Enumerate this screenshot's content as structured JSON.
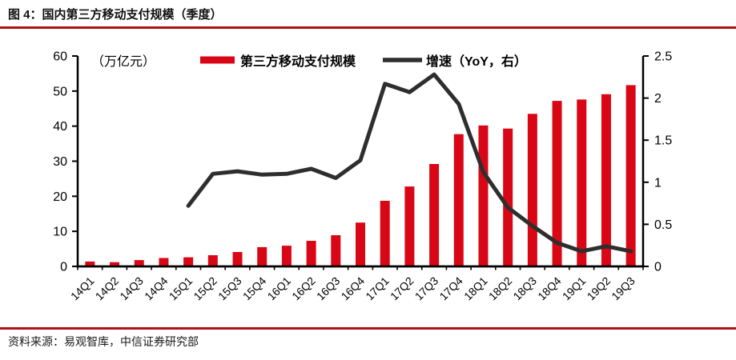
{
  "header": {
    "title": "图 4：国内第三方移动支付规模（季度）"
  },
  "footer": {
    "source": "资料来源：易观智库，中信证券研究部"
  },
  "colors": {
    "bar": "#d90715",
    "line": "#2e2e2e",
    "axis": "#000000",
    "title_rule": "#b01116",
    "footer_rule": "#b01116"
  },
  "chart_data": {
    "type": "bar",
    "title": "国内第三方移动支付规模（季度）",
    "unit_label": "（万亿元）",
    "legend_position": "top",
    "grid": false,
    "categories": [
      "14Q1",
      "14Q2",
      "14Q3",
      "14Q4",
      "15Q1",
      "15Q2",
      "15Q3",
      "15Q4",
      "16Q1",
      "16Q2",
      "16Q3",
      "16Q4",
      "17Q1",
      "17Q2",
      "17Q3",
      "17Q4",
      "18Q1",
      "18Q2",
      "18Q3",
      "18Q4",
      "19Q1",
      "19Q2",
      "19Q3"
    ],
    "series": [
      {
        "name": "第三方移动支付规模",
        "type": "bar",
        "axis": "left",
        "values": [
          1.4,
          1.2,
          1.8,
          2.4,
          2.6,
          3.2,
          4.1,
          5.5,
          5.9,
          7.3,
          8.9,
          12.5,
          18.7,
          22.8,
          29.2,
          37.7,
          40.2,
          39.3,
          43.5,
          47.2,
          47.6,
          49.1,
          51.7
        ]
      },
      {
        "name": "增速（YoY，右）",
        "type": "line",
        "axis": "right",
        "values": [
          null,
          null,
          null,
          null,
          0.72,
          1.1,
          1.13,
          1.09,
          1.1,
          1.16,
          1.05,
          1.26,
          2.17,
          2.07,
          2.28,
          1.93,
          1.12,
          0.7,
          0.48,
          0.28,
          0.18,
          0.24,
          0.18
        ]
      }
    ],
    "left_axis": {
      "min": 0,
      "max": 60,
      "ticks": [
        0,
        10,
        20,
        30,
        40,
        50,
        60
      ]
    },
    "right_axis": {
      "min": 0,
      "max": 2.5,
      "ticks": [
        "0",
        "0.5",
        "1",
        "1.5",
        "2",
        "2.5"
      ]
    }
  }
}
